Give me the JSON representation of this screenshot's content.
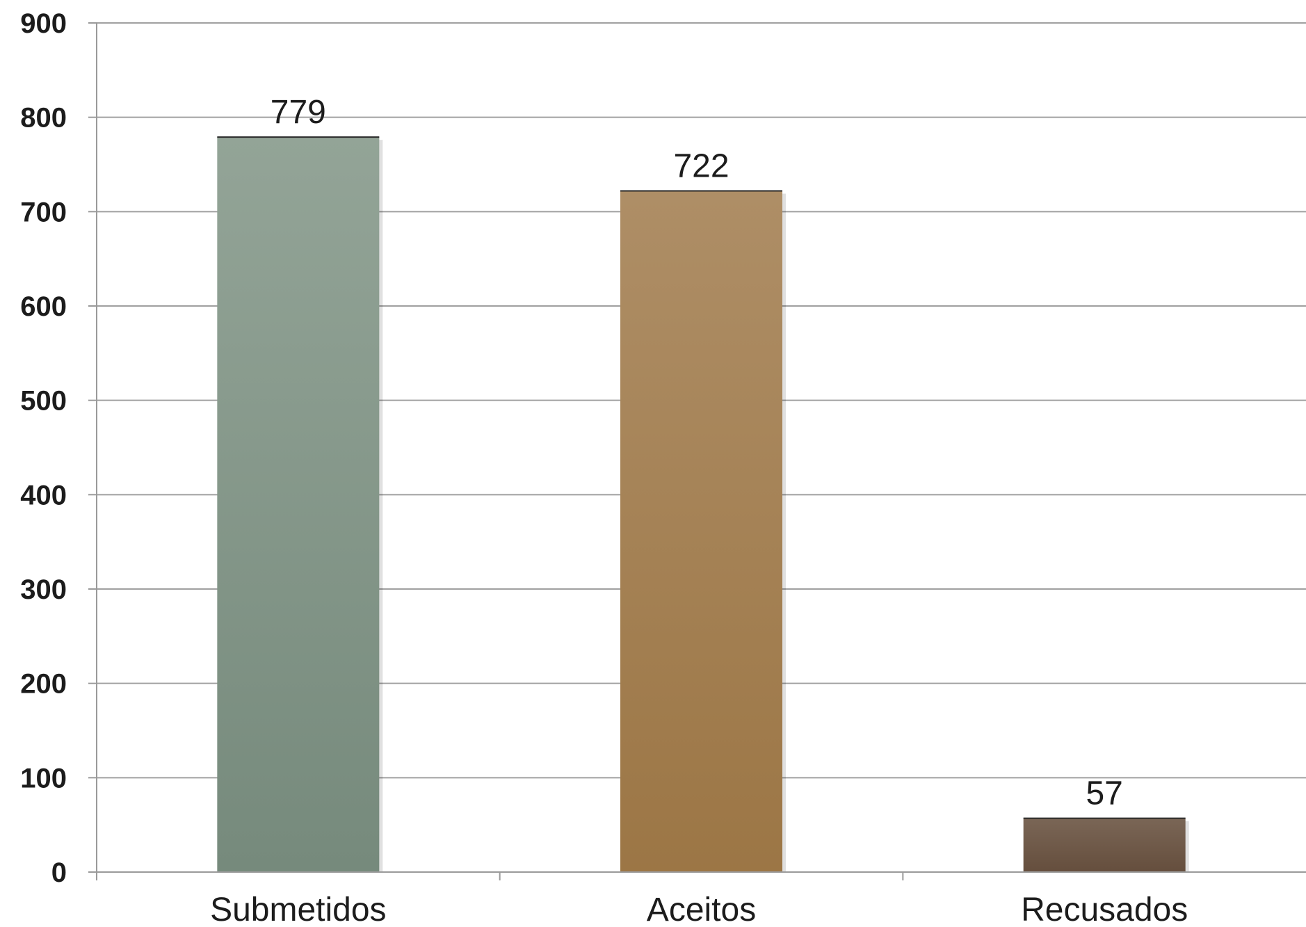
{
  "chart_data": {
    "type": "bar",
    "categories": [
      "Submetidos",
      "Aceitos",
      "Recusados"
    ],
    "values": [
      779,
      722,
      57
    ],
    "data_labels": [
      "779",
      "722",
      "57"
    ],
    "y_ticks": [
      "0",
      "100",
      "200",
      "300",
      "400",
      "500",
      "600",
      "700",
      "800",
      "900"
    ],
    "ylim": [
      0,
      900
    ],
    "grid": true,
    "legend": "none",
    "colors": [
      {
        "top": "#93a497",
        "bottom": "#768a7c"
      },
      {
        "top": "#ae8e66",
        "bottom": "#9c7645"
      },
      {
        "top": "#7a6656",
        "bottom": "#654e3d"
      }
    ],
    "grid_color": "#a0a0a0",
    "axis_color": "#9a9a9a"
  }
}
